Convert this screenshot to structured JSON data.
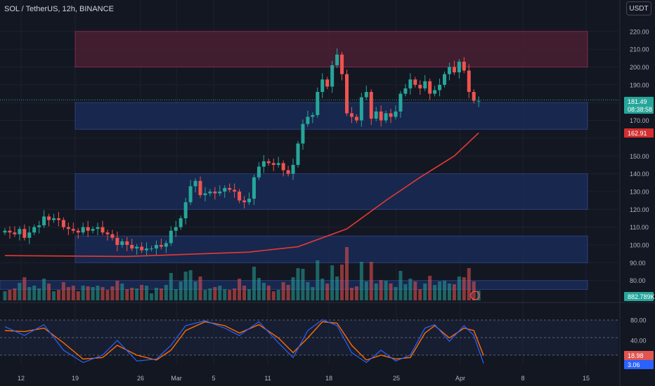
{
  "header": {
    "symbol": "SOL / TetherUS, 12h, BINANCE",
    "currency": "USDT"
  },
  "colors": {
    "background": "#131722",
    "up": "#26a69a",
    "down": "#ef5350",
    "ma": "#e53935",
    "zone_red": "#4a1f33",
    "zone_blue": "#1a2a55",
    "k_line": "#2962ff",
    "d_line": "#ff6d00"
  },
  "badges": {
    "price": "181.49",
    "countdown": "08:38:58",
    "ma_value": "162.91",
    "volume": "882.789K",
    "stoch_d": "18.98",
    "stoch_k": "3.06"
  },
  "chart_data": [
    {
      "type": "candlestick",
      "y_ticks": [
        "220.00",
        "210.00",
        "200.00",
        "190.00",
        "180.00",
        "170.00",
        "160.00",
        "150.00",
        "140.00",
        "130.00",
        "120.00",
        "110.00",
        "100.00",
        "90.00",
        "80.00"
      ],
      "ylim": [
        75,
        225
      ],
      "x_ticks": [
        "12",
        "19",
        "26",
        "Mar",
        "5",
        "11",
        "18",
        "25",
        "Apr",
        "8",
        "15"
      ],
      "zones": [
        {
          "color": "red",
          "from": 200,
          "to": 220
        },
        {
          "color": "blue",
          "from": 165,
          "to": 180
        },
        {
          "color": "blue",
          "from": 120,
          "to": 140
        },
        {
          "color": "blue",
          "from": 90,
          "to": 105
        },
        {
          "color": "blue",
          "from": 75,
          "to": 80
        }
      ],
      "closes": [
        108,
        107,
        106,
        109,
        104,
        107,
        110,
        111,
        116,
        114,
        115,
        114,
        110,
        109,
        108,
        107,
        110,
        108,
        109,
        110,
        107,
        106,
        104,
        100,
        102,
        100,
        98,
        99,
        97,
        98,
        98,
        100,
        99,
        101,
        108,
        110,
        115,
        124,
        133,
        136,
        128,
        129,
        130,
        129,
        130,
        132,
        131,
        130,
        125,
        124,
        126,
        138,
        144,
        147,
        146,
        145,
        146,
        142,
        140,
        145,
        157,
        168,
        172,
        173,
        186,
        193,
        189,
        201,
        207,
        196,
        174,
        172,
        170,
        183,
        186,
        171,
        175,
        170,
        174,
        172,
        175,
        185,
        188,
        193,
        190,
        188,
        192,
        185,
        187,
        190,
        196,
        200,
        197,
        203,
        198,
        186,
        181,
        181
      ],
      "ma": [
        {
          "i": 0,
          "v": 94
        },
        {
          "i": 25,
          "v": 93.5
        },
        {
          "i": 50,
          "v": 96
        },
        {
          "i": 60,
          "v": 99
        },
        {
          "i": 70,
          "v": 109
        },
        {
          "i": 78,
          "v": 125
        },
        {
          "i": 85,
          "v": 138
        },
        {
          "i": 92,
          "v": 150
        },
        {
          "i": 97,
          "v": 163
        }
      ]
    },
    {
      "type": "bar",
      "series_name": "Volume",
      "value": "882.789K"
    },
    {
      "type": "line",
      "series_name": "Stochastic",
      "y_ticks": [
        "80.00",
        "40.00",
        "20.00"
      ],
      "ylim": [
        0,
        100
      ],
      "k": [
        {
          "i": 0,
          "v": 78
        },
        {
          "i": 4,
          "v": 60
        },
        {
          "i": 8,
          "v": 82
        },
        {
          "i": 12,
          "v": 30
        },
        {
          "i": 16,
          "v": 5
        },
        {
          "i": 20,
          "v": 20
        },
        {
          "i": 23,
          "v": 50
        },
        {
          "i": 27,
          "v": 8
        },
        {
          "i": 31,
          "v": 12
        },
        {
          "i": 34,
          "v": 40
        },
        {
          "i": 37,
          "v": 80
        },
        {
          "i": 41,
          "v": 90
        },
        {
          "i": 45,
          "v": 75
        },
        {
          "i": 48,
          "v": 60
        },
        {
          "i": 52,
          "v": 88
        },
        {
          "i": 56,
          "v": 45
        },
        {
          "i": 59,
          "v": 15
        },
        {
          "i": 62,
          "v": 70
        },
        {
          "i": 65,
          "v": 92
        },
        {
          "i": 68,
          "v": 80
        },
        {
          "i": 71,
          "v": 25
        },
        {
          "i": 74,
          "v": 5
        },
        {
          "i": 77,
          "v": 30
        },
        {
          "i": 80,
          "v": 8
        },
        {
          "i": 83,
          "v": 20
        },
        {
          "i": 86,
          "v": 75
        },
        {
          "i": 88,
          "v": 82
        },
        {
          "i": 91,
          "v": 48
        },
        {
          "i": 94,
          "v": 80
        },
        {
          "i": 96,
          "v": 60
        },
        {
          "i": 98,
          "v": 3
        }
      ],
      "d": [
        {
          "i": 0,
          "v": 70
        },
        {
          "i": 4,
          "v": 68
        },
        {
          "i": 8,
          "v": 75
        },
        {
          "i": 12,
          "v": 45
        },
        {
          "i": 16,
          "v": 12
        },
        {
          "i": 20,
          "v": 15
        },
        {
          "i": 23,
          "v": 40
        },
        {
          "i": 27,
          "v": 20
        },
        {
          "i": 31,
          "v": 10
        },
        {
          "i": 34,
          "v": 30
        },
        {
          "i": 37,
          "v": 70
        },
        {
          "i": 41,
          "v": 88
        },
        {
          "i": 45,
          "v": 80
        },
        {
          "i": 48,
          "v": 65
        },
        {
          "i": 52,
          "v": 82
        },
        {
          "i": 56,
          "v": 55
        },
        {
          "i": 59,
          "v": 25
        },
        {
          "i": 62,
          "v": 55
        },
        {
          "i": 65,
          "v": 88
        },
        {
          "i": 68,
          "v": 85
        },
        {
          "i": 71,
          "v": 40
        },
        {
          "i": 74,
          "v": 10
        },
        {
          "i": 77,
          "v": 20
        },
        {
          "i": 80,
          "v": 12
        },
        {
          "i": 83,
          "v": 15
        },
        {
          "i": 86,
          "v": 65
        },
        {
          "i": 88,
          "v": 80
        },
        {
          "i": 91,
          "v": 55
        },
        {
          "i": 94,
          "v": 75
        },
        {
          "i": 96,
          "v": 70
        },
        {
          "i": 98,
          "v": 19
        }
      ]
    }
  ]
}
